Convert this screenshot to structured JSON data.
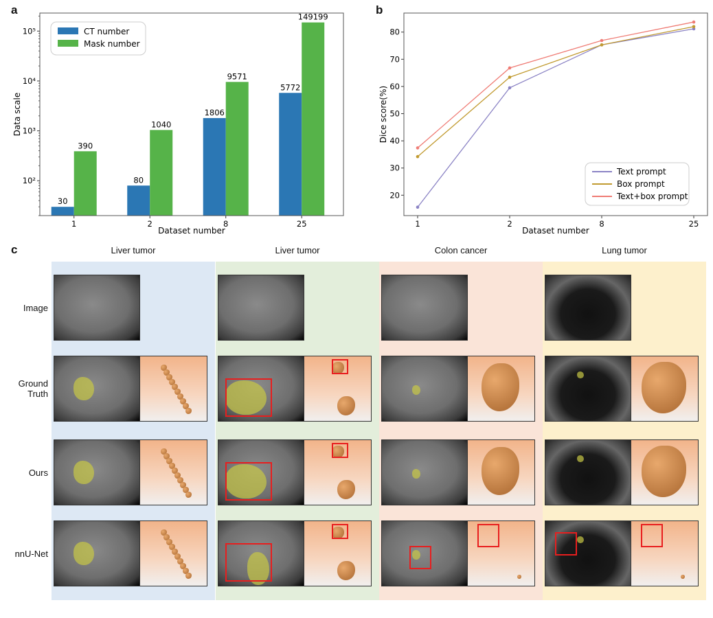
{
  "panels": {
    "a": "a",
    "b": "b",
    "c": "c"
  },
  "colors": {
    "ct": "#2b77b4",
    "mask": "#56b349",
    "text": "#8a82c4",
    "box": "#c19a2f",
    "textbox": "#ef7b74"
  },
  "chart_data": [
    {
      "type": "bar",
      "categories": [
        "1",
        "2",
        "8",
        "25"
      ],
      "xlabel": "Dataset number",
      "ylabel": "Data scale",
      "yscale": "log",
      "ylim": [
        20,
        230000
      ],
      "yticks": [
        "10²",
        "10³",
        "10⁴",
        "10⁵"
      ],
      "legend": "top-left",
      "series": [
        {
          "name": "CT number",
          "values": [
            30,
            80,
            1806,
            5772
          ],
          "labels": [
            "30",
            "80",
            "1806",
            "5772"
          ]
        },
        {
          "name": "Mask number",
          "values": [
            390,
            1040,
            9571,
            149199
          ],
          "labels": [
            "390",
            "1040",
            "9571",
            "149199"
          ]
        }
      ]
    },
    {
      "type": "line",
      "categories": [
        "1",
        "2",
        "8",
        "25"
      ],
      "xlabel": "Dataset number",
      "ylabel": "Dice score(%)",
      "ylim": [
        12.5,
        87
      ],
      "yticks": [
        "20",
        "30",
        "40",
        "50",
        "60",
        "70",
        "80"
      ],
      "legend": "bottom-right",
      "series": [
        {
          "name": "Text prompt",
          "values": [
            15.6,
            59.5,
            75.3,
            81.2
          ]
        },
        {
          "name": "Box prompt",
          "values": [
            34.2,
            63.4,
            75.3,
            82.0
          ]
        },
        {
          "name": "Text+box prompt",
          "values": [
            37.4,
            66.8,
            76.9,
            83.7
          ]
        }
      ]
    }
  ],
  "gallery": {
    "rows": [
      "Image",
      "Ground\nTruth",
      "Ours",
      "nnU-Net"
    ],
    "columns": [
      {
        "title": "Liver tumor",
        "bg": "#dde8f4"
      },
      {
        "title": "Liver tumor",
        "bg": "#e3eedb"
      },
      {
        "title": "Colon cancer",
        "bg": "#fae4d8"
      },
      {
        "title": "Lung tumor",
        "bg": "#fdf0cc"
      }
    ]
  }
}
